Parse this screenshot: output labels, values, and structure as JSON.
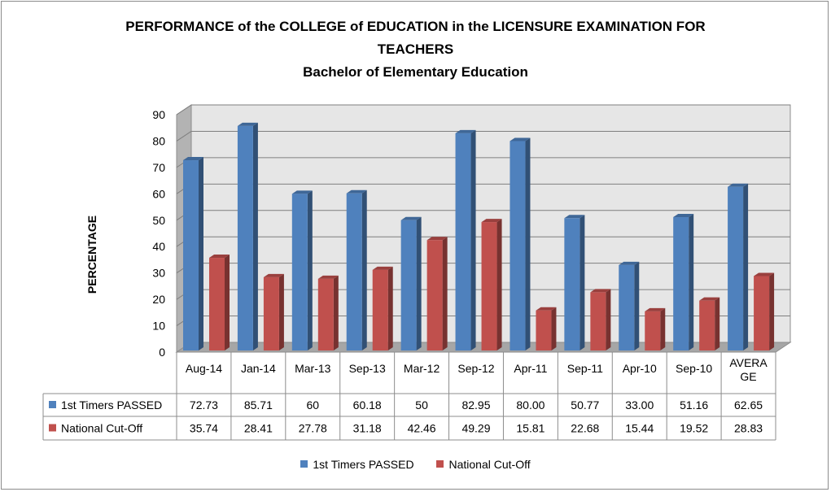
{
  "chart_data": {
    "type": "bar",
    "title": "PERFORMANCE of the COLLEGE of EDUCATION in the LICENSURE EXAMINATION FOR",
    "title_line2": "TEACHERS",
    "subtitle": "Bachelor of Elementary Education",
    "ylabel": "PERCENTAGE",
    "ylim": [
      0,
      90
    ],
    "yticks": [
      "0",
      "10",
      "20",
      "30",
      "40",
      "50",
      "60",
      "70",
      "80",
      "90"
    ],
    "grid": true,
    "legend_placement": "bottom",
    "categories": [
      "Aug-14",
      "Jan-14",
      "Mar-13",
      "Sep-13",
      "Mar-12",
      "Sep-12",
      "Apr-11",
      "Sep-11",
      "Apr-10",
      "Sep-10",
      "AVERAGE"
    ],
    "category_lines": [
      [
        "Aug-14"
      ],
      [
        "Jan-14"
      ],
      [
        "Mar-13"
      ],
      [
        "Sep-13"
      ],
      [
        "Mar-12"
      ],
      [
        "Sep-12"
      ],
      [
        "Apr-11"
      ],
      [
        "Sep-11"
      ],
      [
        "Apr-10"
      ],
      [
        "Sep-10"
      ],
      [
        "AVERA",
        "GE"
      ]
    ],
    "series": [
      {
        "name": "1st Timers PASSED",
        "color": "#4f81bd",
        "values": [
          72.73,
          85.71,
          60,
          60.18,
          50,
          82.95,
          80.0,
          50.77,
          33.0,
          51.16,
          62.65
        ],
        "labels": [
          "72.73",
          "85.71",
          "60",
          "60.18",
          "50",
          "82.95",
          "80.00",
          "50.77",
          "33.00",
          "51.16",
          "62.65"
        ]
      },
      {
        "name": "National Cut-Off",
        "color": "#c0504d",
        "values": [
          35.74,
          28.41,
          27.78,
          31.18,
          42.46,
          49.29,
          15.81,
          22.68,
          15.44,
          19.52,
          28.83
        ],
        "labels": [
          "35.74",
          "28.41",
          "27.78",
          "31.18",
          "42.46",
          "49.29",
          "15.81",
          "22.68",
          "15.44",
          "19.52",
          "28.83"
        ]
      }
    ]
  }
}
